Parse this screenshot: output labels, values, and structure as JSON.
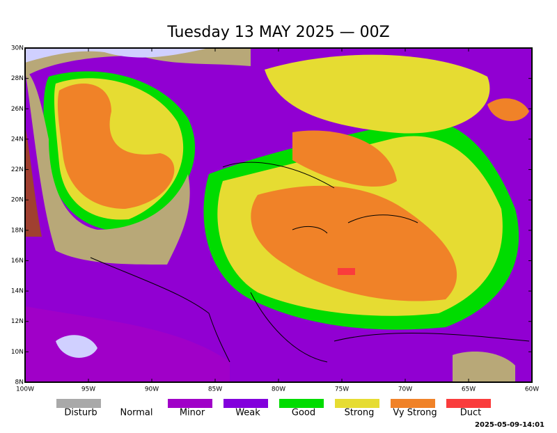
{
  "title": "Tuesday 13 MAY 2025 — 00Z",
  "map": {
    "lat_labels": [
      "30N",
      "28N",
      "26N",
      "24N",
      "22N",
      "20N",
      "18N",
      "16N",
      "14N",
      "12N",
      "10N",
      "8N"
    ],
    "lon_labels": [
      "100W",
      "95W",
      "90W",
      "85W",
      "80W",
      "75W",
      "70W",
      "65W",
      "60W"
    ]
  },
  "legend": [
    {
      "label": "Disturb",
      "color": "#a9a9a9"
    },
    {
      "label": "Normal",
      "color": "#ffffff"
    },
    {
      "label": "Minor",
      "color": "#a000c8"
    },
    {
      "label": "Weak",
      "color": "#8200dc"
    },
    {
      "label": "Good",
      "color": "#00dc00"
    },
    {
      "label": "Strong",
      "color": "#e6dc32"
    },
    {
      "label": "Vy Strong",
      "color": "#f08228"
    },
    {
      "label": "Duct",
      "color": "#fa3c3c"
    }
  ],
  "timestamp": "2025-05-09-14:01"
}
